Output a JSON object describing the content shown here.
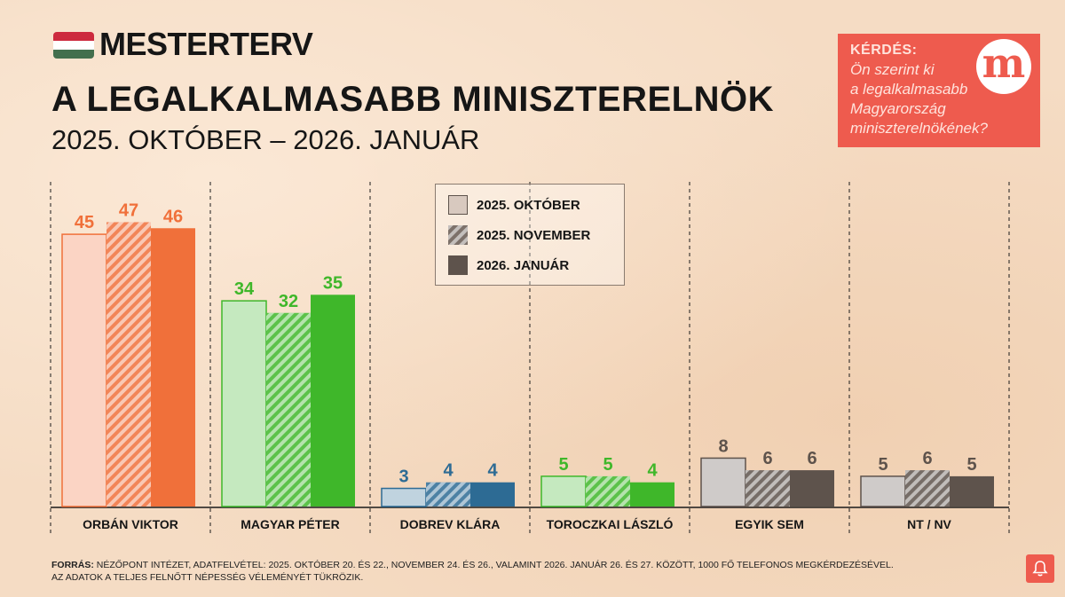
{
  "header": {
    "brand": "MESTERTERV",
    "title": "A LEGALKALMASABB MINISZTERELNÖK",
    "subtitle": "2025. OKTÓBER – 2026. JANUÁR"
  },
  "flag_colors": [
    "#cd2a3e",
    "#ffffff",
    "#436f4d"
  ],
  "question": {
    "label": "KÉRDÉS:",
    "lines": [
      "Ön szerint ki",
      "a legalkalmasabb",
      "Magyarország",
      "miniszterelnökének?"
    ],
    "logo_letter": "m"
  },
  "legend": {
    "items": [
      "2025. OKTÓBER",
      "2025. NOVEMBER",
      "2026. JANUÁR"
    ]
  },
  "chart_data": {
    "type": "bar",
    "categories": [
      "ORBÁN VIKTOR",
      "MAGYAR PÉTER",
      "DOBREV KLÁRA",
      "TOROCZKAI LÁSZLÓ",
      "EGYIK SEM",
      "NT / NV"
    ],
    "series": [
      {
        "name": "2025. OKTÓBER",
        "values": [
          45,
          34,
          3,
          5,
          8,
          5
        ]
      },
      {
        "name": "2025. NOVEMBER",
        "values": [
          47,
          32,
          4,
          5,
          6,
          6
        ]
      },
      {
        "name": "2026. JANUÁR",
        "values": [
          46,
          35,
          4,
          4,
          6,
          5
        ]
      }
    ],
    "category_colors": [
      "#f0703a",
      "#3fb72a",
      "#2d6b94",
      "#3fb72a",
      "#5e534c",
      "#5e534c"
    ],
    "ylim": [
      0,
      50
    ],
    "grid": false
  },
  "footnote": {
    "label": "FORRÁS:",
    "line1": "NÉZŐPONT INTÉZET, ADATFELVÉTEL: 2025. OKTÓBER 20. ÉS 22., NOVEMBER 24. ÉS 26., VALAMINT 2026. JANUÁR 26. ÉS 27. KÖZÖTT, 1000 FŐ TELEFONOS MEGKÉRDEZÉSÉVEL.",
    "line2": "AZ ADATOK A TELJES FELNŐTT NÉPESSÉG VÉLEMÉNYÉT TÜKRÖZIK."
  }
}
